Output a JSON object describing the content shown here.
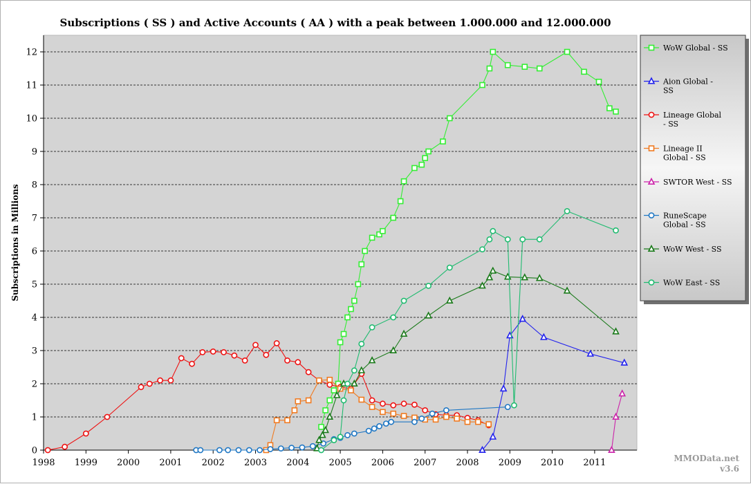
{
  "credit": {
    "site": "MMOData.net",
    "version": "v3.6"
  },
  "chart_data": {
    "type": "line",
    "title": "Subscriptions ( SS ) and Active Accounts ( AA ) with a peak between 1.000.000 and 12.000.000",
    "xlabel": "",
    "ylabel": "Subscriptions in Millions",
    "xlim": [
      1998,
      2011.75
    ],
    "ylim": [
      0,
      12.5
    ],
    "x_ticks": [
      "1998",
      "1999",
      "2000",
      "2001",
      "2002",
      "2003",
      "2004",
      "2005",
      "2006",
      "2007",
      "2008",
      "2009",
      "2010",
      "2011"
    ],
    "y_ticks": [
      "0",
      "1",
      "2",
      "3",
      "4",
      "5",
      "6",
      "7",
      "8",
      "9",
      "10",
      "11",
      "12"
    ],
    "grid": "horizontal dashed",
    "legend_position": "right",
    "series": [
      {
        "name": "WoW Global - SS",
        "color": "#33ee33",
        "marker": "square",
        "points": [
          [
            2004.55,
            0.7
          ],
          [
            2004.65,
            1.2
          ],
          [
            2004.75,
            1.5
          ],
          [
            2004.85,
            1.8
          ],
          [
            2004.95,
            2.0
          ],
          [
            2005.0,
            3.25
          ],
          [
            2005.08,
            3.5
          ],
          [
            2005.17,
            4.0
          ],
          [
            2005.25,
            4.25
          ],
          [
            2005.33,
            4.5
          ],
          [
            2005.42,
            5.0
          ],
          [
            2005.5,
            5.6
          ],
          [
            2005.58,
            6.0
          ],
          [
            2005.75,
            6.4
          ],
          [
            2005.92,
            6.5
          ],
          [
            2006.0,
            6.6
          ],
          [
            2006.25,
            7.0
          ],
          [
            2006.42,
            7.5
          ],
          [
            2006.5,
            8.1
          ],
          [
            2006.75,
            8.5
          ],
          [
            2006.92,
            8.6
          ],
          [
            2007.0,
            8.8
          ],
          [
            2007.08,
            9.0
          ],
          [
            2007.42,
            9.3
          ],
          [
            2007.58,
            10.0
          ],
          [
            2008.35,
            11.0
          ],
          [
            2008.52,
            11.5
          ],
          [
            2008.6,
            12.0
          ],
          [
            2008.95,
            11.6
          ],
          [
            2009.35,
            11.55
          ],
          [
            2009.7,
            11.5
          ],
          [
            2010.35,
            12.0
          ],
          [
            2010.75,
            11.4
          ],
          [
            2011.1,
            11.1
          ],
          [
            2011.35,
            10.3
          ],
          [
            2011.5,
            10.2
          ]
        ]
      },
      {
        "name": "Aion Global - SS",
        "color": "#2222ee",
        "marker": "triangle",
        "points": [
          [
            2008.35,
            0.0
          ],
          [
            2008.6,
            0.4
          ],
          [
            2008.85,
            1.85
          ],
          [
            2009.0,
            3.45
          ],
          [
            2009.3,
            3.95
          ],
          [
            2009.8,
            3.4
          ],
          [
            2010.9,
            2.9
          ],
          [
            2011.7,
            2.63
          ]
        ]
      },
      {
        "name": "Lineage Global - SS",
        "color": "#ee1111",
        "marker": "circle",
        "points": [
          [
            1998.1,
            0.0
          ],
          [
            1998.5,
            0.1
          ],
          [
            1999.0,
            0.5
          ],
          [
            1999.5,
            1.0
          ],
          [
            2000.3,
            1.9
          ],
          [
            2000.5,
            2.0
          ],
          [
            2000.75,
            2.1
          ],
          [
            2001.0,
            2.1
          ],
          [
            2001.25,
            2.77
          ],
          [
            2001.5,
            2.6
          ],
          [
            2001.75,
            2.95
          ],
          [
            2002.0,
            2.97
          ],
          [
            2002.25,
            2.95
          ],
          [
            2002.5,
            2.85
          ],
          [
            2002.75,
            2.7
          ],
          [
            2003.0,
            3.17
          ],
          [
            2003.25,
            2.87
          ],
          [
            2003.5,
            3.22
          ],
          [
            2003.75,
            2.7
          ],
          [
            2004.0,
            2.65
          ],
          [
            2004.25,
            2.35
          ],
          [
            2004.5,
            2.1
          ],
          [
            2004.75,
            1.97
          ],
          [
            2005.0,
            1.9
          ],
          [
            2005.25,
            1.85
          ],
          [
            2005.5,
            2.3
          ],
          [
            2005.75,
            1.5
          ],
          [
            2006.0,
            1.4
          ],
          [
            2006.25,
            1.35
          ],
          [
            2006.5,
            1.4
          ],
          [
            2006.75,
            1.37
          ],
          [
            2007.0,
            1.2
          ],
          [
            2007.25,
            1.08
          ],
          [
            2007.5,
            1.05
          ],
          [
            2007.75,
            1.05
          ],
          [
            2008.0,
            0.97
          ],
          [
            2008.25,
            0.9
          ],
          [
            2008.5,
            0.75
          ]
        ]
      },
      {
        "name": "Lineage II Global - SS",
        "color": "#f07a20",
        "marker": "square",
        "points": [
          [
            2003.25,
            0.0
          ],
          [
            2003.35,
            0.15
          ],
          [
            2003.5,
            0.9
          ],
          [
            2003.75,
            0.9
          ],
          [
            2003.92,
            1.2
          ],
          [
            2004.0,
            1.47
          ],
          [
            2004.25,
            1.5
          ],
          [
            2004.5,
            2.1
          ],
          [
            2004.75,
            2.12
          ],
          [
            2005.0,
            1.85
          ],
          [
            2005.25,
            1.8
          ],
          [
            2005.5,
            1.52
          ],
          [
            2005.75,
            1.3
          ],
          [
            2006.0,
            1.15
          ],
          [
            2006.25,
            1.1
          ],
          [
            2006.5,
            1.03
          ],
          [
            2006.75,
            0.98
          ],
          [
            2007.0,
            0.92
          ],
          [
            2007.25,
            0.92
          ],
          [
            2007.5,
            1.0
          ],
          [
            2007.75,
            0.95
          ],
          [
            2008.0,
            0.85
          ],
          [
            2008.25,
            0.85
          ],
          [
            2008.5,
            0.78
          ]
        ]
      },
      {
        "name": "SWTOR West - SS",
        "color": "#cc22aa",
        "marker": "triangle",
        "points": [
          [
            2011.4,
            0.0
          ],
          [
            2011.5,
            1.0
          ],
          [
            2011.65,
            1.7
          ]
        ]
      },
      {
        "name": "RuneScape Global - SS",
        "color": "#1f77c4",
        "marker": "circle",
        "points": [
          [
            2001.6,
            0.0
          ],
          [
            2001.7,
            0.0
          ],
          [
            2002.15,
            0.0
          ],
          [
            2002.35,
            0.0
          ],
          [
            2002.6,
            0.0
          ],
          [
            2002.85,
            0.0
          ],
          [
            2003.1,
            0.0
          ],
          [
            2003.35,
            0.03
          ],
          [
            2003.6,
            0.05
          ],
          [
            2003.85,
            0.07
          ],
          [
            2004.1,
            0.08
          ],
          [
            2004.35,
            0.12
          ],
          [
            2004.6,
            0.2
          ],
          [
            2004.85,
            0.33
          ],
          [
            2005.0,
            0.37
          ],
          [
            2005.17,
            0.45
          ],
          [
            2005.33,
            0.5
          ],
          [
            2005.67,
            0.58
          ],
          [
            2005.8,
            0.65
          ],
          [
            2005.92,
            0.72
          ],
          [
            2006.08,
            0.8
          ],
          [
            2006.2,
            0.85
          ],
          [
            2006.75,
            0.85
          ],
          [
            2006.92,
            0.95
          ],
          [
            2007.17,
            1.1
          ],
          [
            2007.5,
            1.2
          ],
          [
            2008.95,
            1.3
          ]
        ]
      },
      {
        "name": "WoW West - SS",
        "color": "#1a7a1a",
        "marker": "triangle",
        "points": [
          [
            2004.45,
            0.05
          ],
          [
            2004.5,
            0.3
          ],
          [
            2004.58,
            0.45
          ],
          [
            2004.65,
            0.6
          ],
          [
            2004.75,
            1.0
          ],
          [
            2004.92,
            1.65
          ],
          [
            2005.08,
            2.0
          ],
          [
            2005.33,
            2.0
          ],
          [
            2005.5,
            2.4
          ],
          [
            2005.75,
            2.7
          ],
          [
            2006.25,
            3.0
          ],
          [
            2006.5,
            3.5
          ],
          [
            2007.08,
            4.05
          ],
          [
            2007.58,
            4.5
          ],
          [
            2008.35,
            4.95
          ],
          [
            2008.52,
            5.2
          ],
          [
            2008.6,
            5.4
          ],
          [
            2008.95,
            5.22
          ],
          [
            2009.35,
            5.2
          ],
          [
            2009.7,
            5.18
          ],
          [
            2010.35,
            4.8
          ],
          [
            2011.5,
            3.57
          ]
        ]
      },
      {
        "name": "WoW East - SS",
        "color": "#20bb70",
        "marker": "circle",
        "points": [
          [
            2004.55,
            0.0
          ],
          [
            2004.85,
            0.3
          ],
          [
            2005.0,
            0.4
          ],
          [
            2005.08,
            1.5
          ],
          [
            2005.17,
            2.0
          ],
          [
            2005.33,
            2.4
          ],
          [
            2005.5,
            3.2
          ],
          [
            2005.75,
            3.7
          ],
          [
            2006.25,
            4.0
          ],
          [
            2006.5,
            4.5
          ],
          [
            2007.08,
            4.95
          ],
          [
            2007.58,
            5.5
          ],
          [
            2008.35,
            6.05
          ],
          [
            2008.52,
            6.35
          ],
          [
            2008.6,
            6.6
          ],
          [
            2008.95,
            6.35
          ],
          [
            2009.1,
            1.35
          ],
          [
            2009.3,
            6.35
          ],
          [
            2009.7,
            6.35
          ],
          [
            2010.35,
            7.2
          ],
          [
            2011.5,
            6.62
          ]
        ]
      }
    ]
  }
}
